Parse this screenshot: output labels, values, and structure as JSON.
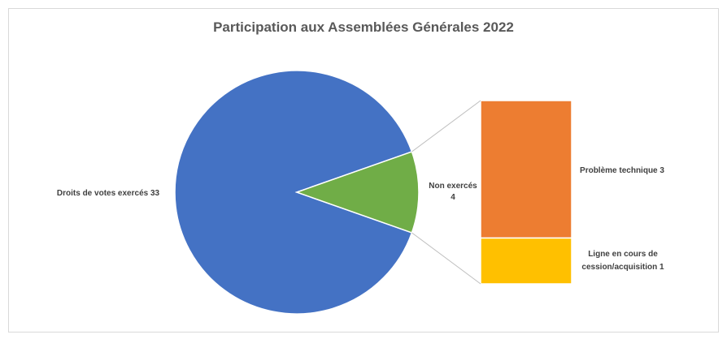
{
  "chart_data": {
    "type": "bar-of-pie",
    "title": "Participation aux Assemblées Générales 2022",
    "pie": {
      "slices": [
        {
          "label": "Droits de votes exercés",
          "value": 33,
          "label_text": "Droits de votes exercés 33",
          "color": "#4472c4"
        },
        {
          "label": "Non exercés",
          "value": 4,
          "label_text": [
            "Non exercés",
            "4"
          ],
          "color": "#70ad47"
        }
      ]
    },
    "bar": {
      "segments": [
        {
          "label": "Problème technique",
          "value": 3,
          "label_text": "Problème technique 3",
          "color": "#ed7d31"
        },
        {
          "label": "Ligne en cours de cession/acquisition",
          "value": 1,
          "label_text": [
            "Ligne en cours de",
            "cession/acquisition  1"
          ],
          "color": "#ffc000"
        }
      ]
    }
  }
}
